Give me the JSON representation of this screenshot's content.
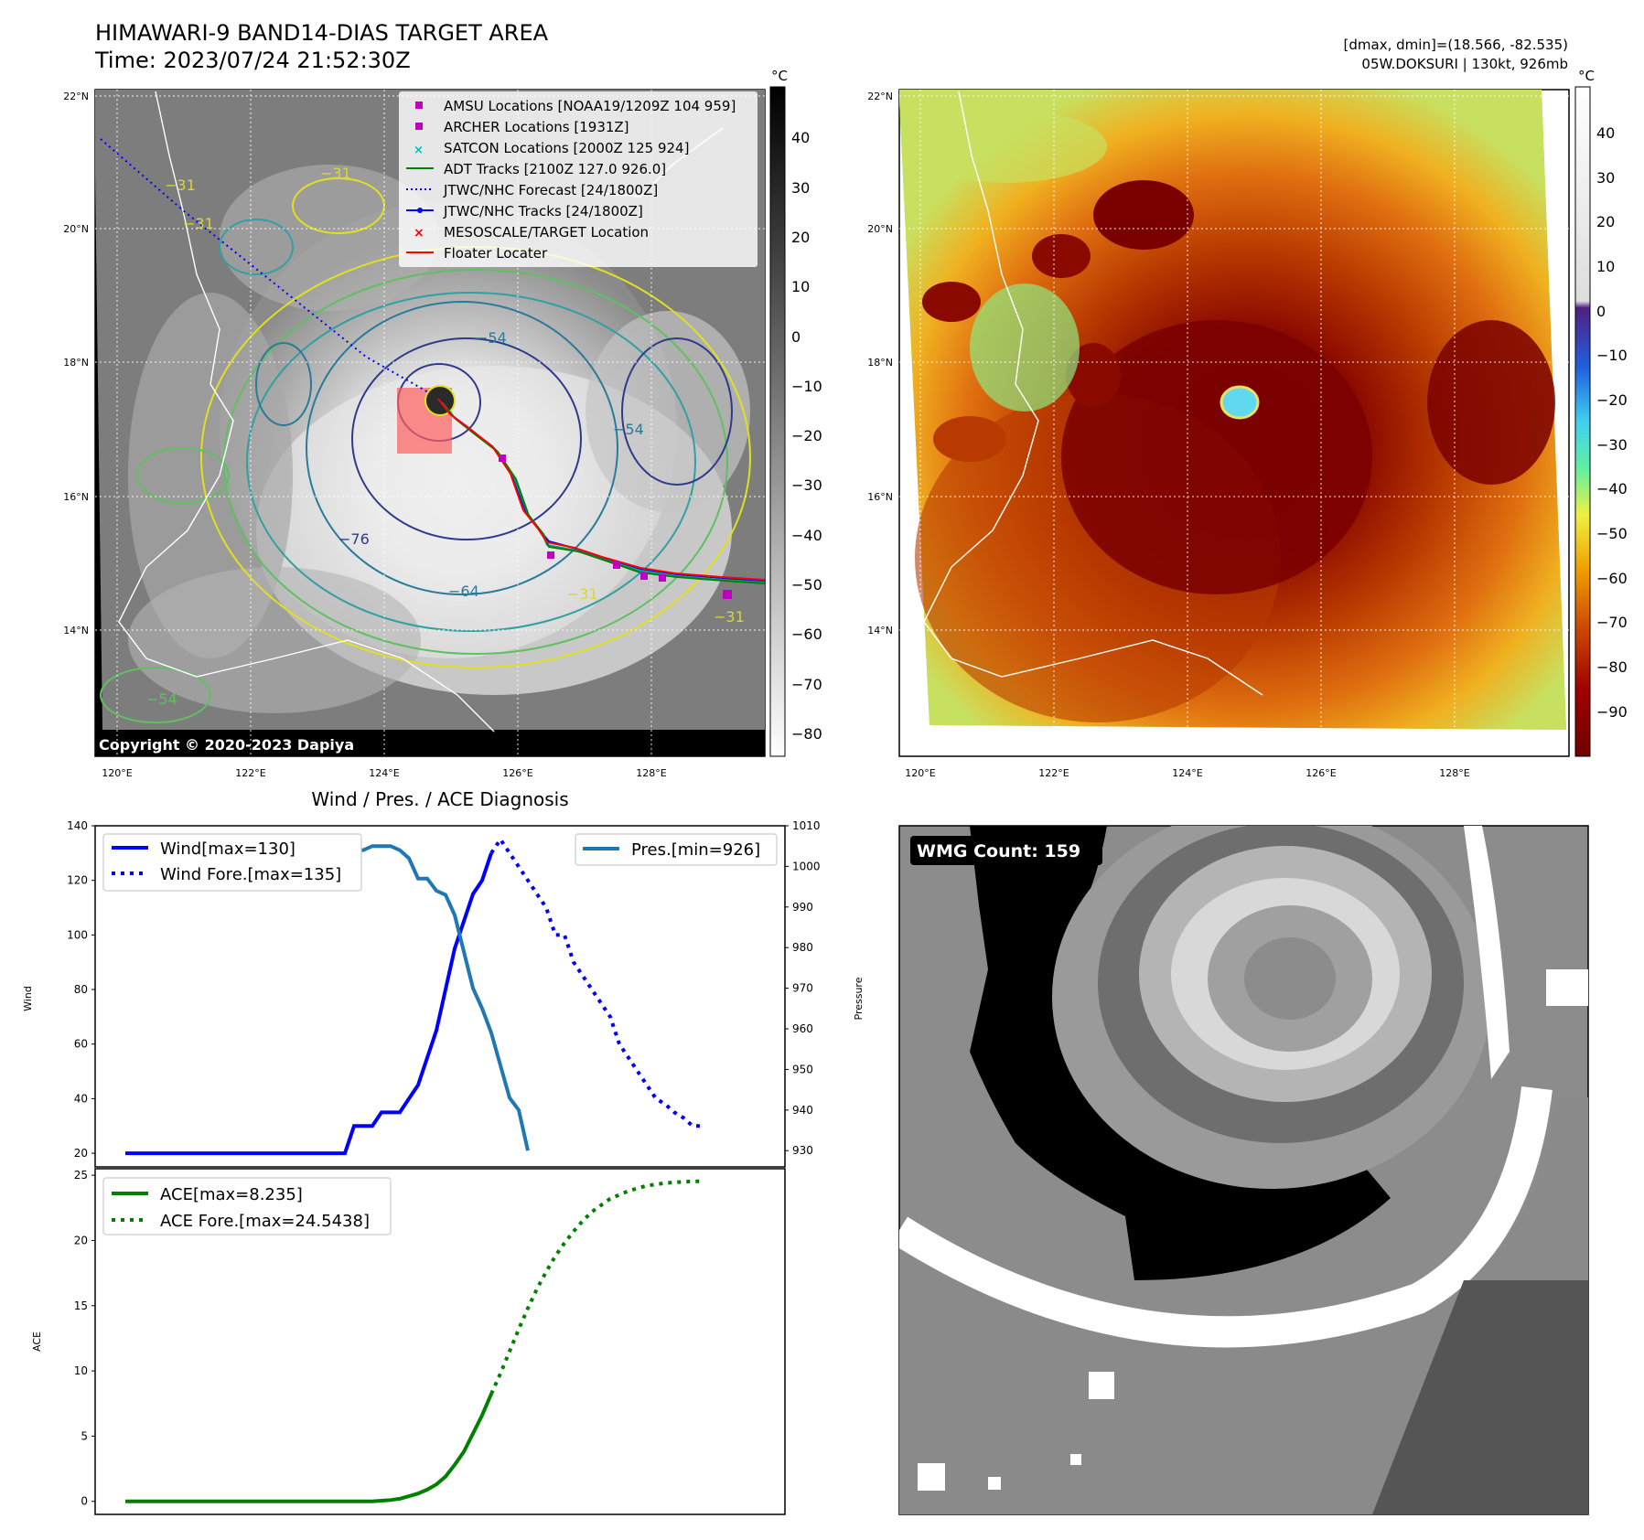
{
  "header": {
    "title": "HIMAWARI-9 BAND14-DIAS TARGET AREA",
    "time": "Time: 2023/07/24 21:52:30Z",
    "dmax_dmin": "[dmax, dmin]=(18.566, -82.535)",
    "storm": "05W.DOKSURI | 130kt, 926mb"
  },
  "map_ir": {
    "lat_ticks": [
      "22°N",
      "20°N",
      "18°N",
      "16°N",
      "14°N"
    ],
    "lon_ticks": [
      "120°E",
      "122°E",
      "124°E",
      "126°E",
      "128°E"
    ],
    "colorbar_unit": "°C",
    "colorbar_ticks": [
      "40",
      "30",
      "20",
      "10",
      "0",
      "−10",
      "−20",
      "−30",
      "−40",
      "−50",
      "−60",
      "−70",
      "−80"
    ],
    "copyright": "Copyright © 2020-2023 Dapiya",
    "contour_labels": [
      "−31",
      "−31",
      "−31",
      "−54",
      "−54",
      "−64",
      "−76",
      "−31",
      "−31",
      "−54"
    ],
    "legend": [
      {
        "label": "AMSU Locations [NOAA19/1209Z 104 959]",
        "color": "#c000c0",
        "marker": "square"
      },
      {
        "label": "ARCHER Locations [1931Z]",
        "color": "#c000c0",
        "marker": "square"
      },
      {
        "label": "SATCON Locations [2000Z 125 924]",
        "color": "#00c0c0",
        "marker": "x"
      },
      {
        "label": "ADT Tracks [2100Z 127.0 926.0]",
        "color": "#008000",
        "marker": "line"
      },
      {
        "label": "JTWC/NHC Forecast [24/1800Z]",
        "color": "#0000ff",
        "marker": "dotted"
      },
      {
        "label": "JTWC/NHC Tracks [24/1800Z]",
        "color": "#0000ff",
        "marker": "line-dot"
      },
      {
        "label": "MESOSCALE/TARGET Location",
        "color": "#ff0000",
        "marker": "x"
      },
      {
        "label": "Floater Locater",
        "color": "#ff0000",
        "marker": "line"
      }
    ]
  },
  "map_color": {
    "lat_ticks": [
      "22°N",
      "20°N",
      "18°N",
      "16°N",
      "14°N"
    ],
    "lon_ticks": [
      "120°E",
      "122°E",
      "124°E",
      "126°E",
      "128°E"
    ],
    "colorbar_unit": "°C",
    "colorbar_ticks": [
      "40",
      "30",
      "20",
      "10",
      "0",
      "−10",
      "−20",
      "−30",
      "−40",
      "−50",
      "−60",
      "−70",
      "−80",
      "−90"
    ]
  },
  "wmg": {
    "label": "WMG Count: 159"
  },
  "colors": {
    "wind": "#0000ff",
    "pressure": "#1f77b4",
    "ace": "#008000"
  },
  "chart_data": [
    {
      "type": "line",
      "title": "Wind / Pres. / ACE Diagnosis",
      "ylabel": "Wind",
      "ylabel_right": "Pressure",
      "ylim": [
        15,
        140
      ],
      "ylim_right": [
        926,
        1010
      ],
      "yticks": [
        20,
        40,
        60,
        80,
        100,
        120,
        140
      ],
      "yticks_right": [
        930,
        940,
        950,
        960,
        970,
        980,
        990,
        1000,
        1010
      ],
      "legend_left": [
        "Wind[max=130]",
        "Wind Fore.[max=135]"
      ],
      "legend_right": [
        "Pres.[min=926]"
      ],
      "series": [
        {
          "name": "Wind[max=130]",
          "axis": "left",
          "style": "solid",
          "color": "#0000ff",
          "values": [
            20,
            20,
            20,
            20,
            20,
            20,
            20,
            20,
            20,
            20,
            20,
            20,
            20,
            20,
            20,
            20,
            20,
            20,
            20,
            20,
            20,
            20,
            20,
            20,
            20,
            30,
            30,
            30,
            35,
            35,
            35,
            40,
            45,
            55,
            65,
            80,
            95,
            105,
            115,
            120,
            130
          ]
        },
        {
          "name": "Wind Fore.[max=135]",
          "axis": "left",
          "style": "dotted",
          "color": "#0000ff",
          "x_start": 40,
          "values": [
            130,
            135,
            130,
            125,
            120,
            115,
            110,
            100,
            100,
            90,
            85,
            80,
            75,
            70,
            60,
            55,
            50,
            45,
            40,
            38,
            35,
            33,
            30,
            30
          ]
        },
        {
          "name": "Pres.[min=926]",
          "axis": "right",
          "style": "solid",
          "color": "#1f77b4",
          "values": [
            1005,
            1005,
            1005,
            1005,
            1005,
            1005,
            1005,
            1005,
            1005,
            1005,
            1005,
            1005,
            1005,
            1005,
            1005,
            1005,
            1004,
            1004,
            1004,
            1004,
            1004,
            1004,
            1004,
            1004,
            1004,
            1004,
            1004,
            1005,
            1005,
            1005,
            1004,
            1002,
            997,
            997,
            994,
            993,
            988,
            979,
            970,
            965,
            959,
            951,
            943,
            940,
            930
          ]
        }
      ]
    },
    {
      "type": "line",
      "ylabel": "ACE",
      "ylim": [
        -1,
        25.5
      ],
      "yticks": [
        0,
        5,
        10,
        15,
        20,
        25
      ],
      "legend": [
        "ACE[max=8.235]",
        "ACE Fore.[max=24.5438]"
      ],
      "series": [
        {
          "name": "ACE[max=8.235]",
          "style": "solid",
          "color": "#008000",
          "values": [
            0,
            0,
            0,
            0,
            0,
            0,
            0,
            0,
            0,
            0,
            0,
            0,
            0,
            0,
            0,
            0,
            0,
            0,
            0,
            0,
            0,
            0,
            0,
            0,
            0,
            0,
            0,
            0,
            0.05,
            0.1,
            0.2,
            0.4,
            0.6,
            0.9,
            1.3,
            1.9,
            2.8,
            3.8,
            5.2,
            6.6,
            8.235
          ]
        },
        {
          "name": "ACE Fore.[max=24.5438]",
          "style": "dotted",
          "color": "#008000",
          "x_start": 40,
          "values": [
            8.235,
            9.8,
            11.5,
            13.2,
            14.8,
            16.3,
            17.6,
            18.8,
            19.8,
            20.7,
            21.5,
            22.2,
            22.7,
            23.2,
            23.5,
            23.8,
            24.0,
            24.2,
            24.3,
            24.4,
            24.45,
            24.5,
            24.52,
            24.5438
          ]
        }
      ]
    }
  ]
}
